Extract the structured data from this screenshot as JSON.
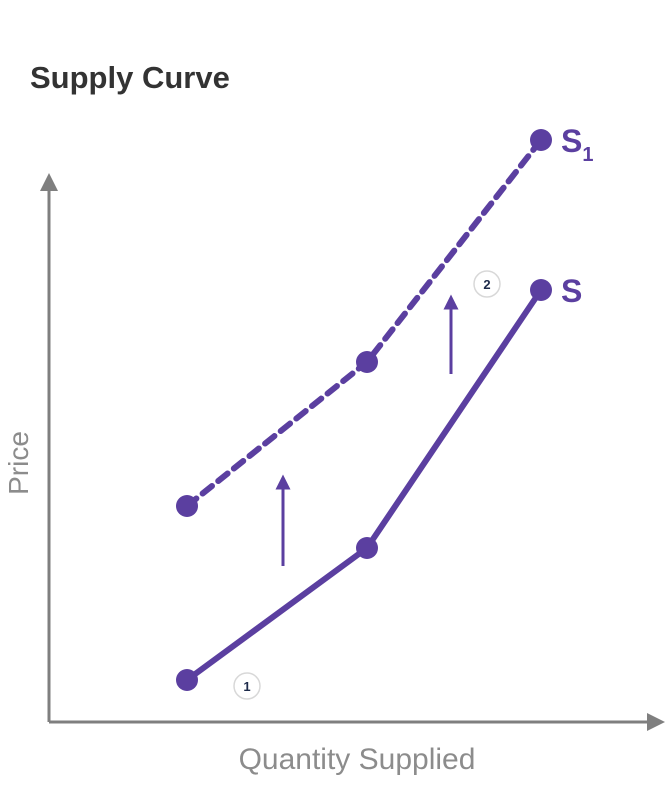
{
  "title": "Supply Curve",
  "chart_data": {
    "type": "line",
    "xlabel": "Quantity Supplied",
    "ylabel": "Price",
    "xlim": [
      0,
      10
    ],
    "ylim": [
      0,
      10
    ],
    "grid": false,
    "series": [
      {
        "name": "S",
        "subscript": "",
        "style": "solid",
        "x": [
          2.3,
          5.3,
          8.2
        ],
        "values": [
          0.7,
          2.9,
          7.2
        ]
      },
      {
        "name": "S",
        "subscript": "1",
        "style": "dashed",
        "x": [
          2.3,
          5.3,
          8.2
        ],
        "values": [
          3.6,
          6.0,
          9.7
        ]
      }
    ],
    "shift_arrows": [
      {
        "x": 3.9,
        "from": 2.6,
        "to": 4.0
      },
      {
        "x": 6.7,
        "from": 5.8,
        "to": 7.0
      }
    ],
    "markers": [
      {
        "label": "1",
        "x": 3.3,
        "y": 0.6
      },
      {
        "label": "2",
        "x": 7.3,
        "y": 7.3
      }
    ],
    "colors": {
      "series": "#5b3fa0",
      "axis": "#7f7f7f",
      "axis_label": "#8c8c8c",
      "title": "#333333"
    }
  }
}
